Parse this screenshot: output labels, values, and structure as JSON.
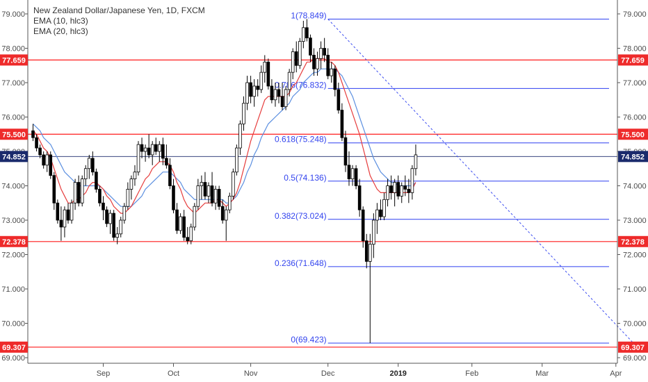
{
  "legend": {
    "title": "New Zealand Dollar/Japanese Yen, 1D, FXCM",
    "ema10": "EMA (10, hlc3)",
    "ema20": "EMA (20, hlc3)"
  },
  "colors": {
    "candle": "#000000",
    "candle_up_fill": "#ffffff",
    "ema10": "#e63c3c",
    "ema20": "#5b8fe0",
    "support_line": "#ff1a1a",
    "fib_line": "#2d3ff0",
    "trend_line": "#3b4cf0",
    "badge_red": "#ee2b2b",
    "badge_current": "#1a2a6c",
    "axis": "#555555"
  },
  "chart_data": {
    "type": "candlestick",
    "title": "New Zealand Dollar/Japanese Yen, 1D, FXCM",
    "ylim": [
      68.8,
      79.3
    ],
    "y_ticks": [
      "69.000",
      "70.000",
      "71.000",
      "72.000",
      "73.000",
      "74.000",
      "75.000",
      "76.000",
      "77.000",
      "78.000",
      "79.000"
    ],
    "x_months": [
      {
        "label": "Sep",
        "bar": 20
      },
      {
        "label": "Oct",
        "bar": 40
      },
      {
        "label": "Nov",
        "bar": 62
      },
      {
        "label": "Dec",
        "bar": 84
      },
      {
        "label": "2019",
        "bar": 104,
        "bold": true
      },
      {
        "label": "Feb",
        "bar": 125
      },
      {
        "label": "Mar",
        "bar": 145
      },
      {
        "label": "Apr",
        "bar": 166
      }
    ],
    "candles": [
      [
        75.6,
        75.8,
        75.3,
        75.4
      ],
      [
        75.4,
        75.5,
        75.0,
        75.1
      ],
      [
        75.1,
        75.2,
        74.8,
        74.9
      ],
      [
        74.9,
        75.0,
        74.5,
        74.6
      ],
      [
        74.6,
        75.0,
        74.4,
        74.9
      ],
      [
        74.9,
        75.0,
        74.2,
        74.3
      ],
      [
        74.3,
        74.4,
        73.3,
        73.5
      ],
      [
        73.5,
        73.6,
        72.9,
        73.0
      ],
      [
        73.0,
        73.4,
        72.4,
        72.8
      ],
      [
        72.8,
        73.4,
        72.5,
        73.3
      ],
      [
        73.3,
        73.5,
        72.9,
        73.0
      ],
      [
        73.0,
        73.6,
        72.9,
        73.5
      ],
      [
        73.5,
        74.2,
        73.3,
        74.1
      ],
      [
        74.1,
        74.3,
        73.4,
        73.5
      ],
      [
        73.5,
        74.3,
        73.4,
        74.2
      ],
      [
        74.2,
        74.6,
        74.0,
        74.5
      ],
      [
        74.5,
        74.9,
        74.2,
        74.8
      ],
      [
        74.8,
        75.0,
        74.3,
        74.4
      ],
      [
        74.4,
        74.5,
        73.8,
        73.9
      ],
      [
        73.9,
        74.0,
        73.4,
        73.5
      ],
      [
        73.5,
        73.7,
        73.0,
        73.3
      ],
      [
        73.3,
        73.4,
        72.8,
        72.9
      ],
      [
        72.9,
        73.3,
        72.6,
        73.2
      ],
      [
        73.2,
        73.3,
        72.4,
        72.5
      ],
      [
        72.5,
        72.8,
        72.3,
        72.6
      ],
      [
        72.6,
        73.1,
        72.5,
        73.0
      ],
      [
        73.0,
        73.5,
        72.9,
        73.4
      ],
      [
        73.4,
        74.1,
        73.3,
        73.9
      ],
      [
        73.9,
        74.3,
        73.6,
        74.2
      ],
      [
        74.2,
        74.6,
        74.0,
        74.4
      ],
      [
        74.4,
        75.3,
        74.3,
        75.2
      ],
      [
        75.2,
        75.4,
        74.8,
        75.0
      ],
      [
        75.0,
        75.2,
        74.7,
        75.1
      ],
      [
        75.1,
        75.5,
        74.8,
        74.9
      ],
      [
        74.9,
        75.3,
        74.6,
        75.2
      ],
      [
        75.2,
        75.4,
        74.9,
        75.0
      ],
      [
        75.0,
        75.3,
        74.7,
        75.2
      ],
      [
        75.2,
        75.4,
        74.6,
        74.8
      ],
      [
        74.8,
        75.2,
        74.5,
        74.6
      ],
      [
        74.6,
        74.8,
        73.9,
        74.0
      ],
      [
        74.0,
        74.2,
        73.2,
        73.3
      ],
      [
        73.3,
        73.5,
        72.6,
        72.7
      ],
      [
        72.7,
        73.2,
        72.6,
        73.1
      ],
      [
        73.1,
        73.3,
        72.4,
        72.5
      ],
      [
        72.5,
        72.8,
        72.3,
        72.4
      ],
      [
        72.4,
        72.9,
        72.3,
        72.8
      ],
      [
        72.8,
        73.5,
        72.7,
        73.4
      ],
      [
        73.4,
        74.2,
        73.3,
        74.0
      ],
      [
        74.0,
        74.3,
        73.6,
        74.1
      ],
      [
        74.1,
        74.4,
        73.6,
        73.7
      ],
      [
        73.7,
        74.1,
        73.5,
        74.0
      ],
      [
        74.0,
        74.4,
        73.4,
        73.5
      ],
      [
        73.5,
        74.0,
        73.3,
        73.9
      ],
      [
        73.9,
        74.0,
        73.3,
        73.4
      ],
      [
        73.4,
        73.6,
        72.9,
        73.0
      ],
      [
        73.0,
        73.4,
        72.4,
        73.3
      ],
      [
        73.3,
        73.8,
        73.2,
        73.7
      ],
      [
        73.7,
        74.5,
        73.6,
        74.4
      ],
      [
        74.4,
        75.2,
        74.3,
        75.1
      ],
      [
        75.1,
        75.9,
        74.9,
        75.8
      ],
      [
        75.8,
        76.6,
        75.6,
        76.4
      ],
      [
        76.4,
        77.2,
        76.2,
        77.0
      ],
      [
        77.0,
        77.2,
        76.4,
        76.6
      ],
      [
        76.6,
        77.1,
        76.3,
        76.9
      ],
      [
        76.9,
        77.1,
        76.6,
        76.8
      ],
      [
        76.8,
        77.5,
        76.7,
        77.3
      ],
      [
        77.3,
        77.8,
        77.0,
        77.6
      ],
      [
        77.6,
        77.7,
        76.8,
        76.9
      ],
      [
        76.9,
        77.1,
        76.4,
        76.5
      ],
      [
        76.5,
        77.0,
        76.3,
        76.8
      ],
      [
        76.8,
        77.0,
        76.4,
        76.6
      ],
      [
        76.6,
        77.0,
        76.2,
        76.3
      ],
      [
        76.3,
        76.9,
        76.2,
        76.8
      ],
      [
        76.8,
        77.4,
        76.6,
        77.3
      ],
      [
        77.3,
        78.0,
        77.1,
        77.9
      ],
      [
        77.9,
        78.2,
        77.3,
        77.5
      ],
      [
        77.5,
        78.3,
        77.4,
        78.2
      ],
      [
        78.2,
        78.8,
        78.0,
        78.6
      ],
      [
        78.6,
        78.85,
        78.2,
        78.3
      ],
      [
        78.3,
        78.4,
        77.6,
        77.8
      ],
      [
        77.8,
        78.0,
        77.2,
        77.4
      ],
      [
        77.4,
        77.9,
        77.2,
        77.7
      ],
      [
        77.7,
        78.2,
        77.4,
        78.0
      ],
      [
        78.0,
        78.3,
        77.6,
        77.8
      ],
      [
        77.8,
        78.0,
        77.1,
        77.2
      ],
      [
        77.2,
        77.6,
        77.0,
        77.4
      ],
      [
        77.4,
        77.5,
        76.6,
        76.8
      ],
      [
        76.8,
        77.0,
        76.1,
        76.2
      ],
      [
        76.2,
        76.4,
        75.3,
        75.4
      ],
      [
        75.4,
        75.6,
        74.4,
        74.6
      ],
      [
        74.6,
        75.0,
        74.0,
        74.2
      ],
      [
        74.2,
        74.6,
        74.0,
        74.5
      ],
      [
        74.5,
        74.6,
        73.9,
        74.0
      ],
      [
        74.0,
        74.2,
        73.1,
        73.3
      ],
      [
        73.3,
        73.4,
        72.2,
        72.4
      ],
      [
        72.4,
        72.6,
        71.6,
        71.8
      ],
      [
        71.8,
        72.6,
        69.423,
        72.3
      ],
      [
        72.3,
        73.2,
        71.9,
        73.0
      ],
      [
        73.0,
        73.5,
        72.6,
        73.3
      ],
      [
        73.3,
        73.6,
        73.0,
        73.1
      ],
      [
        73.1,
        73.8,
        73.0,
        73.6
      ],
      [
        73.6,
        74.2,
        73.4,
        74.0
      ],
      [
        74.0,
        74.3,
        73.6,
        73.8
      ],
      [
        73.8,
        74.2,
        73.4,
        74.1
      ],
      [
        74.1,
        74.3,
        73.6,
        73.7
      ],
      [
        73.7,
        74.1,
        73.5,
        74.0
      ],
      [
        74.0,
        74.3,
        73.7,
        73.9
      ],
      [
        73.9,
        74.2,
        73.5,
        73.8
      ],
      [
        73.8,
        74.6,
        73.6,
        74.5
      ],
      [
        74.5,
        75.2,
        74.3,
        74.9
      ]
    ],
    "ema10": [
      75.6,
      75.5,
      75.3,
      75.1,
      75.0,
      74.8,
      74.5,
      74.2,
      73.9,
      73.7,
      73.5,
      73.5,
      73.6,
      73.6,
      73.7,
      73.8,
      74.0,
      74.1,
      74.1,
      74.0,
      73.9,
      73.7,
      73.6,
      73.4,
      73.3,
      73.2,
      73.2,
      73.3,
      73.4,
      73.6,
      73.8,
      74.0,
      74.2,
      74.3,
      74.5,
      74.6,
      74.7,
      74.7,
      74.7,
      74.6,
      74.4,
      74.1,
      73.9,
      73.6,
      73.4,
      73.3,
      73.2,
      73.3,
      73.4,
      73.5,
      73.5,
      73.5,
      73.6,
      73.6,
      73.5,
      73.4,
      73.5,
      73.6,
      73.8,
      74.1,
      74.5,
      74.9,
      75.3,
      75.6,
      75.9,
      76.2,
      76.5,
      76.6,
      76.6,
      76.6,
      76.6,
      76.6,
      76.6,
      76.7,
      76.9,
      77.0,
      77.2,
      77.4,
      77.6,
      77.6,
      77.7,
      77.7,
      77.7,
      77.7,
      77.6,
      77.6,
      77.5,
      77.3,
      77.0,
      76.7,
      76.4,
      76.1,
      75.8,
      75.5,
      75.1,
      74.7,
      74.3,
      74.1,
      73.9,
      73.8,
      73.8,
      73.8,
      73.8,
      73.8,
      73.8,
      73.8,
      73.8,
      73.8,
      73.9,
      74.1
    ],
    "ema20": [
      75.8,
      75.7,
      75.6,
      75.4,
      75.3,
      75.2,
      75.0,
      74.8,
      74.6,
      74.4,
      74.3,
      74.2,
      74.1,
      74.0,
      74.0,
      74.0,
      74.0,
      74.0,
      74.0,
      74.0,
      73.9,
      73.8,
      73.7,
      73.6,
      73.5,
      73.4,
      73.4,
      73.4,
      73.4,
      73.5,
      73.6,
      73.7,
      73.9,
      74.0,
      74.1,
      74.2,
      74.3,
      74.4,
      74.4,
      74.4,
      74.3,
      74.2,
      74.1,
      73.9,
      73.8,
      73.7,
      73.6,
      73.6,
      73.6,
      73.6,
      73.6,
      73.6,
      73.6,
      73.6,
      73.6,
      73.5,
      73.5,
      73.6,
      73.7,
      73.9,
      74.1,
      74.4,
      74.6,
      74.9,
      75.1,
      75.4,
      75.6,
      75.8,
      75.9,
      76.0,
      76.1,
      76.2,
      76.3,
      76.4,
      76.6,
      76.7,
      76.8,
      77.0,
      77.1,
      77.2,
      77.3,
      77.3,
      77.4,
      77.4,
      77.4,
      77.4,
      77.4,
      77.3,
      77.2,
      77.0,
      76.8,
      76.6,
      76.3,
      76.0,
      75.7,
      75.4,
      75.1,
      74.8,
      74.6,
      74.4,
      74.3,
      74.2,
      74.1,
      74.1,
      74.0,
      74.0,
      74.0,
      74.0,
      74.0,
      74.1
    ],
    "support_levels": [
      "77.659",
      "75.500",
      "72.378",
      "69.307"
    ],
    "current_price": "74.852",
    "fib_levels": [
      {
        "label": "1(78.849)",
        "value": 78.849
      },
      {
        "label": "0.786(76.832)",
        "value": 76.832
      },
      {
        "label": "0.618(75.248)",
        "value": 75.248
      },
      {
        "label": "0.5(74.136)",
        "value": 74.136
      },
      {
        "label": "0.382(73.024)",
        "value": 73.024
      },
      {
        "label": "0.236(71.648)",
        "value": 71.648
      },
      {
        "label": "0(69.423)",
        "value": 69.423
      }
    ],
    "trend_line": {
      "from": {
        "bar": 84,
        "value": 78.849
      },
      "to": {
        "bar": 171,
        "value": 69.423
      }
    },
    "grid": false,
    "legend_position": "top-left"
  }
}
